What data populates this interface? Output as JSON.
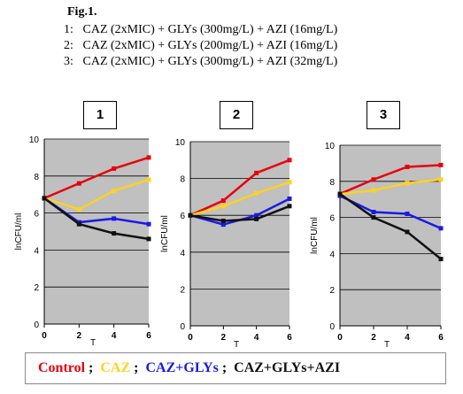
{
  "figure": {
    "title": "Fig.1.",
    "conditions": [
      {
        "num": "1:",
        "text": "CAZ (2xMIC) + GLYs (300mg/L) + AZI (16mg/L)"
      },
      {
        "num": "2:",
        "text": "CAZ (2xMIC) + GLYs (200mg/L) + AZI (16mg/L)"
      },
      {
        "num": "3:",
        "text": "CAZ (2xMIC) + GLYs (300mg/L) + AZI (32mg/L)"
      }
    ]
  },
  "legend": {
    "items": [
      {
        "label": "Control",
        "color": "#e8000c"
      },
      {
        "label": "CAZ",
        "color": "#ffd21e"
      },
      {
        "label": "CAZ+GLYs",
        "color": "#1a1ae6"
      },
      {
        "label": "CAZ+GLYs+AZI",
        "color": "#111111"
      }
    ],
    "separator": ";"
  },
  "chart_data": [
    {
      "type": "line",
      "panel_label": "1",
      "ylabel": "lnCFU/ml",
      "xlabel": "T",
      "x": [
        0,
        2,
        4,
        6
      ],
      "xticks": [
        "0",
        "2",
        "4",
        "6"
      ],
      "yticks": [
        "0",
        "2",
        "4",
        "6",
        "8",
        "10"
      ],
      "ylim": [
        0,
        10
      ],
      "xlim": [
        0,
        6
      ],
      "grid": true,
      "plot_background": "#c0c0c0",
      "series": [
        {
          "name": "Control",
          "color": "#e8000c",
          "values": [
            6.8,
            7.6,
            8.4,
            9.0
          ]
        },
        {
          "name": "CAZ",
          "color": "#ffd21e",
          "values": [
            6.8,
            6.2,
            7.2,
            7.8
          ]
        },
        {
          "name": "CAZ+GLYs",
          "color": "#1a1ae6",
          "values": [
            6.8,
            5.5,
            5.7,
            5.4
          ]
        },
        {
          "name": "CAZ+GLYs+AZI",
          "color": "#111111",
          "values": [
            6.8,
            5.4,
            4.9,
            4.6
          ]
        }
      ]
    },
    {
      "type": "line",
      "panel_label": "2",
      "ylabel": "lnCFU/ml",
      "xlabel": "T",
      "x": [
        0,
        2,
        4,
        6
      ],
      "xticks": [
        "0",
        "2",
        "4",
        "6"
      ],
      "yticks": [
        "0",
        "2",
        "4",
        "6",
        "8",
        "10"
      ],
      "ylim": [
        0,
        10
      ],
      "xlim": [
        0,
        6
      ],
      "grid": true,
      "plot_background": "#c0c0c0",
      "series": [
        {
          "name": "Control",
          "color": "#e8000c",
          "values": [
            6.0,
            6.8,
            8.3,
            9.0
          ]
        },
        {
          "name": "CAZ",
          "color": "#ffd21e",
          "values": [
            6.0,
            6.5,
            7.2,
            7.8
          ]
        },
        {
          "name": "CAZ+GLYs",
          "color": "#1a1ae6",
          "values": [
            6.0,
            5.5,
            6.0,
            6.9
          ]
        },
        {
          "name": "CAZ+GLYs+AZI",
          "color": "#111111",
          "values": [
            6.0,
            5.7,
            5.8,
            6.5
          ]
        }
      ]
    },
    {
      "type": "line",
      "panel_label": "3",
      "ylabel": "lnCFU/ml",
      "xlabel": "T",
      "x": [
        0,
        2,
        4,
        6
      ],
      "xticks": [
        "0",
        "2",
        "4",
        "6"
      ],
      "yticks": [
        "0",
        "2",
        "4",
        "6",
        "8",
        "10"
      ],
      "ylim": [
        0,
        10
      ],
      "xlim": [
        0,
        6
      ],
      "grid": true,
      "plot_background": "#c0c0c0",
      "series": [
        {
          "name": "Control",
          "color": "#e8000c",
          "values": [
            7.3,
            8.1,
            8.8,
            8.9
          ]
        },
        {
          "name": "CAZ",
          "color": "#ffd21e",
          "values": [
            7.3,
            7.5,
            7.9,
            8.1
          ]
        },
        {
          "name": "CAZ+GLYs",
          "color": "#1a1ae6",
          "values": [
            7.2,
            6.3,
            6.2,
            5.4
          ]
        },
        {
          "name": "CAZ+GLYs+AZI",
          "color": "#111111",
          "values": [
            7.3,
            6.0,
            5.2,
            3.7
          ]
        }
      ]
    }
  ]
}
